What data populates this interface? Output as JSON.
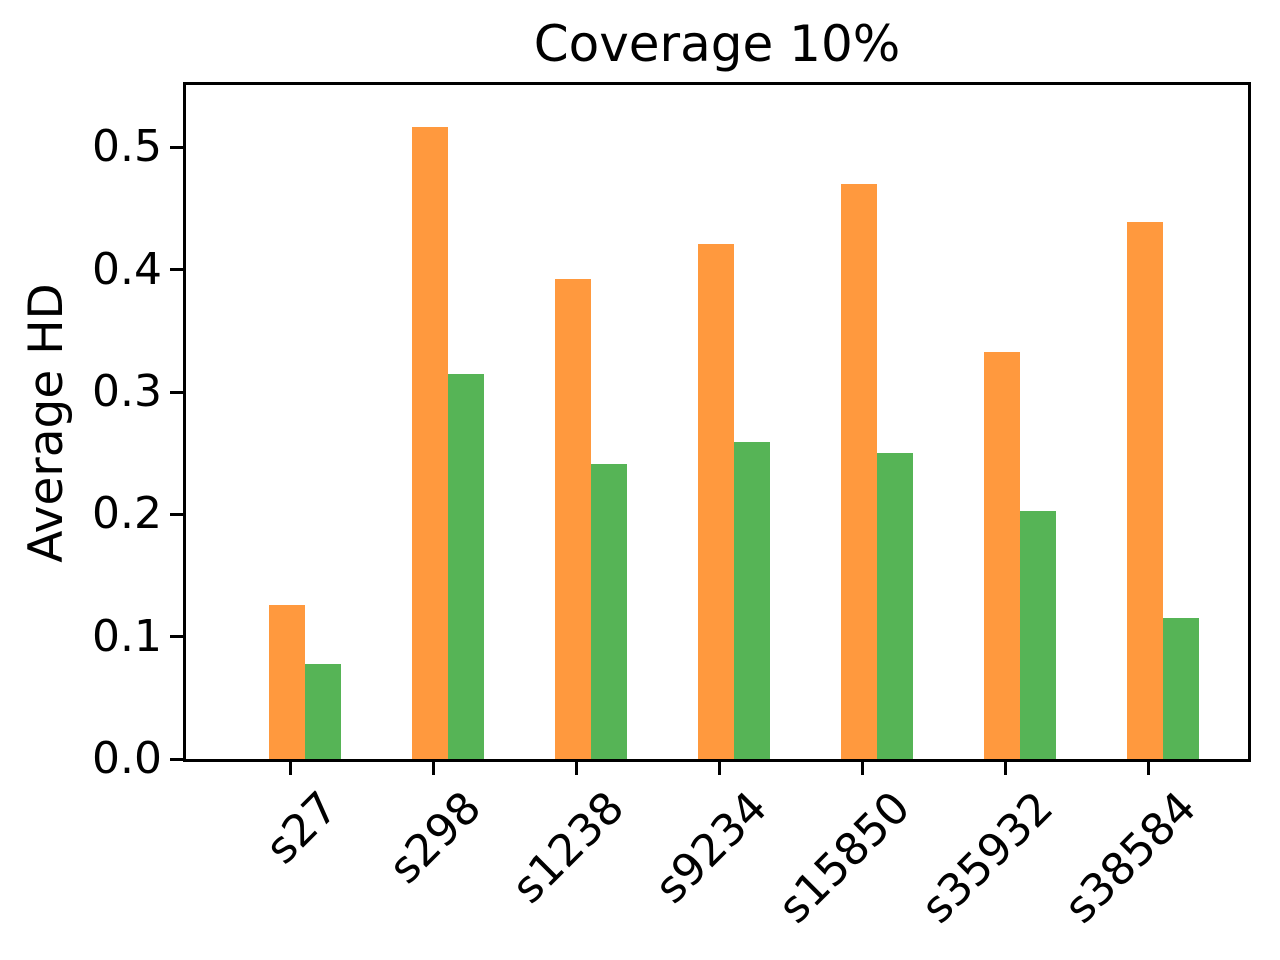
{
  "chart_data": {
    "type": "bar",
    "title": "Coverage 10%",
    "ylabel": "Average HD",
    "xlabel": "",
    "categories": [
      "s27",
      "s298",
      "s1238",
      "s9234",
      "s15850",
      "s35932",
      "s38584"
    ],
    "series": [
      {
        "name": "orange",
        "color": "#ff993e",
        "values": [
          0.126,
          0.517,
          0.392,
          0.421,
          0.47,
          0.333,
          0.439
        ]
      },
      {
        "name": "green",
        "color": "#56b456",
        "values": [
          0.078,
          0.315,
          0.241,
          0.259,
          0.25,
          0.203,
          0.115
        ]
      }
    ],
    "ylim": [
      0,
      0.551
    ],
    "yticks": [
      0.0,
      0.1,
      0.2,
      0.3,
      0.4,
      0.5
    ],
    "ytick_labels": [
      "0.0",
      "0.1",
      "0.2",
      "0.3",
      "0.4",
      "0.5"
    ],
    "xtick_rotation_deg": 45,
    "grid": false,
    "legend": "none",
    "axis_color": "#000000",
    "background_color": "#ffffff"
  }
}
